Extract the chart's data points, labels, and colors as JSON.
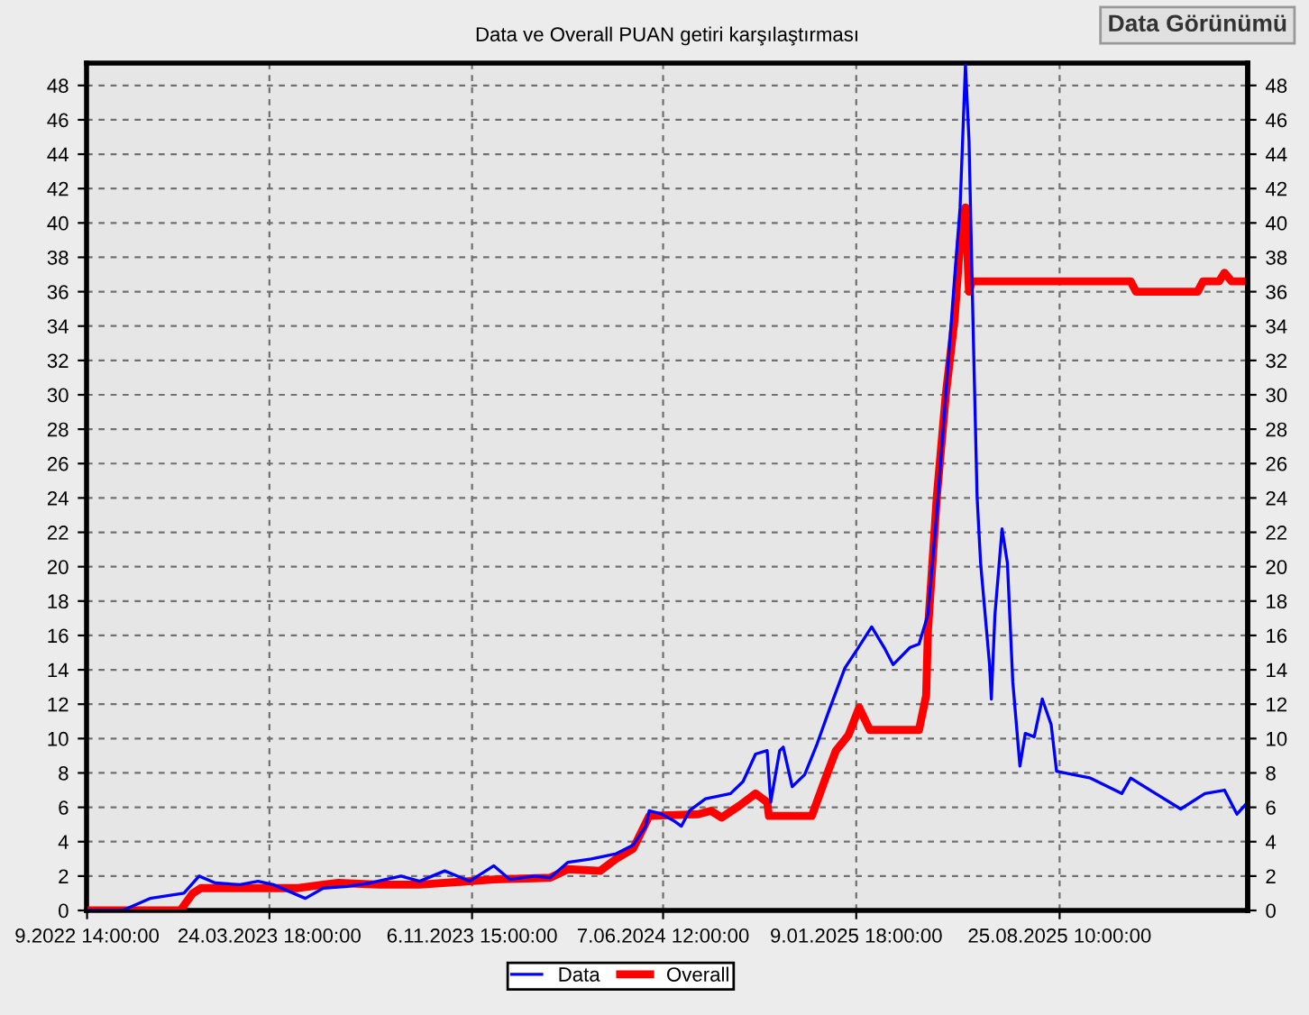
{
  "chart_data": {
    "type": "line",
    "title": "Data ve Overall PUAN getiri karşılaştırması",
    "annotations": [
      "Data Görünümü"
    ],
    "x": [
      "2022-09-01",
      "2022-10-11",
      "2022-10-16",
      "2022-11-11",
      "2022-12-19",
      "2023-01-05",
      "2023-01-23",
      "2023-02-20",
      "2023-03-12",
      "2023-03-29",
      "2023-05-04",
      "2023-05-24",
      "2023-06-20",
      "2023-07-16",
      "2023-08-19",
      "2023-09-09",
      "2023-10-07",
      "2023-11-04",
      "2023-12-01",
      "2023-12-19",
      "2024-01-16",
      "2024-02-02",
      "2024-02-22",
      "2024-03-19",
      "2024-04-16",
      "2024-05-05",
      "2024-05-19",
      "2024-05-23",
      "2024-06-06",
      "2024-06-20",
      "2024-06-28",
      "2024-07-07",
      "2024-07-25",
      "2024-08-22",
      "2024-09-05",
      "2024-09-19",
      "2024-10-02",
      "2024-10-06",
      "2024-10-16",
      "2024-10-20",
      "2024-10-30",
      "2024-11-13",
      "2024-11-27",
      "2024-12-10",
      "2024-12-28",
      "2025-01-11",
      "2025-01-27",
      "2025-02-10",
      "2025-02-20",
      "2025-03-11",
      "2025-03-21",
      "2025-03-31",
      "2025-04-10",
      "2025-04-20",
      "2025-04-30",
      "2025-05-06",
      "2025-05-12",
      "2025-05-16",
      "2025-05-21",
      "2025-05-25",
      "2025-05-29",
      "2025-06-08",
      "2025-06-10",
      "2025-06-14",
      "2025-06-22",
      "2025-06-28",
      "2025-07-04",
      "2025-07-12",
      "2025-07-18",
      "2025-07-28",
      "2025-08-06",
      "2025-08-16",
      "2025-08-22",
      "2025-09-29",
      "2025-11-03",
      "2025-11-13",
      "2025-12-11",
      "2026-01-08",
      "2026-02-04",
      "2026-02-26",
      "2026-03-12",
      "2026-03-24"
    ],
    "series": [
      {
        "name": "Data",
        "color": "#0000ff",
        "values": [
          0,
          0,
          0.1,
          0.7,
          1.0,
          2.0,
          1.6,
          1.5,
          1.7,
          1.5,
          0.7,
          1.3,
          1.4,
          1.6,
          2.0,
          1.7,
          2.3,
          1.7,
          2.6,
          1.8,
          2.0,
          1.9,
          2.8,
          3.0,
          3.3,
          3.8,
          4.9,
          5.8,
          5.6,
          5.2,
          4.9,
          5.8,
          6.5,
          6.8,
          7.5,
          9.1,
          9.3,
          6.3,
          9.3,
          9.5,
          7.2,
          7.9,
          9.7,
          11.6,
          14.1,
          15.2,
          16.5,
          15.3,
          14.3,
          15.3,
          15.5,
          17.2,
          23.2,
          30.0,
          36.9,
          40.9,
          49.2,
          44.8,
          33,
          24.1,
          20.2,
          14.3,
          12.3,
          17.2,
          22.2,
          20.2,
          13.3,
          8.4,
          10.3,
          10.1,
          12.3,
          10.8,
          8.1,
          7.7,
          6.8,
          7.7,
          6.8,
          5.9,
          6.8,
          7.0,
          5.6,
          6.3
        ]
      },
      {
        "name": "Overall",
        "color": "#ff0000",
        "x": [
          "2022-09-01",
          "2022-12-15",
          "2022-12-29",
          "2023-01-07",
          "2023-04-26",
          "2023-05-24",
          "2023-06-10",
          "2023-07-26",
          "2023-09-09",
          "2023-12-01",
          "2024-02-02",
          "2024-02-22",
          "2024-03-29",
          "2024-04-16",
          "2024-05-05",
          "2024-05-23",
          "2024-07-17",
          "2024-07-31",
          "2024-08-12",
          "2024-09-01",
          "2024-09-19",
          "2024-10-02",
          "2024-10-04",
          "2024-11-21",
          "2024-12-05",
          "2024-12-18",
          "2025-01-01",
          "2025-01-13",
          "2025-01-25",
          "2025-03-21",
          "2025-03-29",
          "2025-03-31",
          "2025-04-10",
          "2025-04-20",
          "2025-04-30",
          "2025-05-06",
          "2025-05-12",
          "2025-05-16",
          "2025-05-19",
          "2025-11-13",
          "2025-11-19",
          "2026-01-27",
          "2026-02-02",
          "2026-02-20",
          "2026-02-26",
          "2026-03-06",
          "2026-03-24"
        ],
        "values": [
          0,
          0,
          1.0,
          1.3,
          1.3,
          1.5,
          1.6,
          1.5,
          1.5,
          1.8,
          1.9,
          2.4,
          2.3,
          3.0,
          3.6,
          5.5,
          5.6,
          5.8,
          5.4,
          6.1,
          6.8,
          6.3,
          5.5,
          5.5,
          7.5,
          9.3,
          10.2,
          11.8,
          10.5,
          10.5,
          12.5,
          16.3,
          24.1,
          30,
          34.5,
          38.9,
          40.9,
          36,
          36.6,
          36.6,
          36.0,
          36.0,
          36.6,
          36.6,
          37.1,
          36.6,
          36.6
        ]
      }
    ],
    "xlim": [
      "2022-09-01",
      "2026-03-24"
    ],
    "xticks": [
      {
        "value": "2022-09-01T14:00",
        "label": "9.2022 14:00:00"
      },
      {
        "value": "2023-03-24T18:00",
        "label": "24.03.2023 18:00:00"
      },
      {
        "value": "2023-11-06T15:00",
        "label": "6.11.2023 15:00:00"
      },
      {
        "value": "2024-06-07T12:00",
        "label": "7.06.2024 12:00:00"
      },
      {
        "value": "2025-01-09T18:00",
        "label": "9.01.2025 18:00:00"
      },
      {
        "value": "2025-08-25T10:00",
        "label": "25.08.2025 10:00:00"
      }
    ],
    "ylim": [
      0,
      49.3
    ],
    "yticks": [
      0,
      2,
      4,
      6,
      8,
      10,
      12,
      14,
      16,
      18,
      20,
      22,
      24,
      26,
      28,
      30,
      32,
      34,
      36,
      38,
      40,
      42,
      44,
      46,
      48
    ],
    "y2lim": [
      0,
      49.3
    ],
    "y2ticks": [
      0,
      2,
      4,
      6,
      8,
      10,
      12,
      14,
      16,
      18,
      20,
      22,
      24,
      26,
      28,
      30,
      32,
      34,
      36,
      38,
      40,
      42,
      44,
      46,
      48
    ],
    "grid": true,
    "legend": "bottom",
    "marker": "none",
    "line_style": "solid"
  }
}
